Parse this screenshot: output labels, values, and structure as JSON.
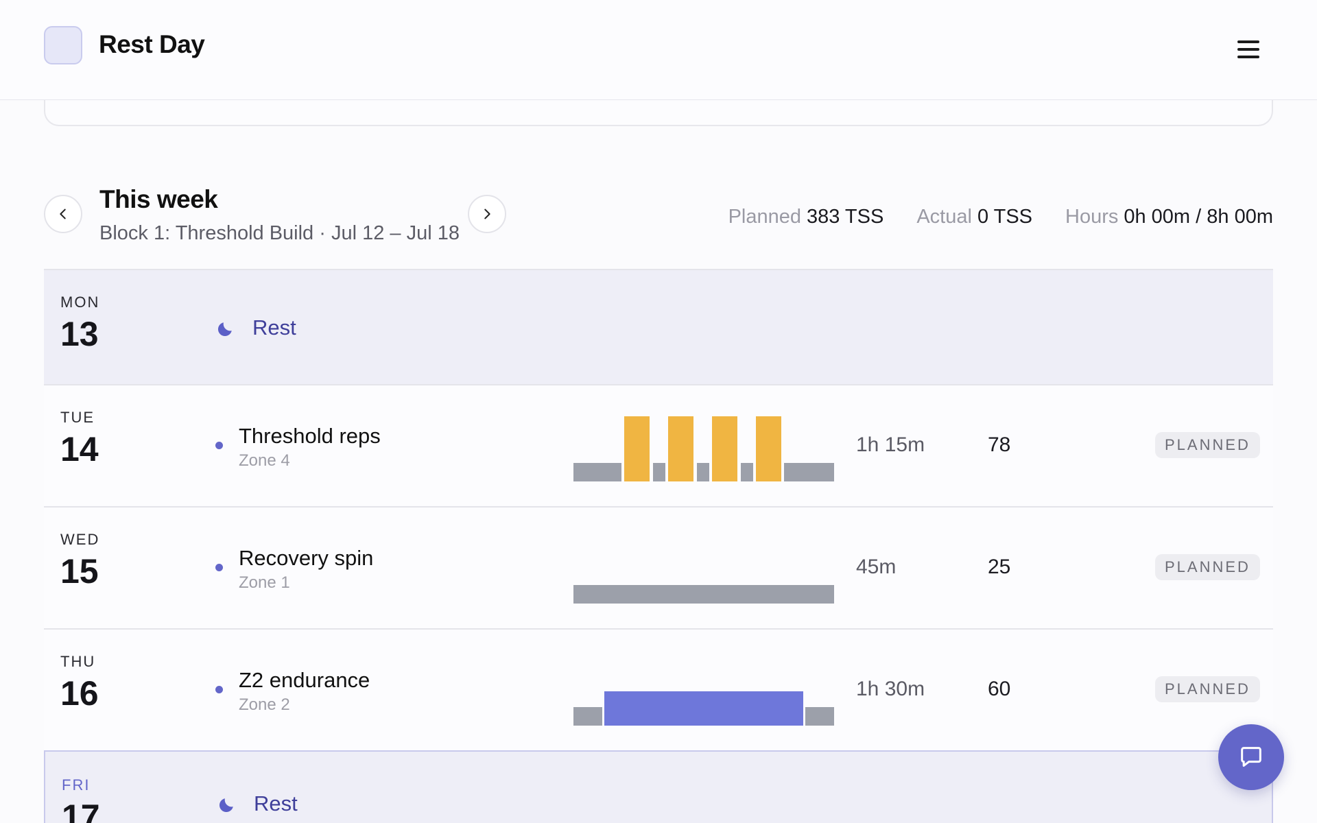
{
  "app": {
    "title": "Rest Day",
    "menu_icon": "hamburger-menu-icon"
  },
  "week": {
    "title": "This week",
    "subtitle": "Block 1: Threshold Build · Jul 12 – Jul 18",
    "stats": [
      {
        "label": "Planned",
        "value": "383 TSS"
      },
      {
        "label": "Actual",
        "value": "0 TSS"
      },
      {
        "label": "Hours",
        "value": "0h 00m / 8h 00m"
      }
    ]
  },
  "days": [
    {
      "dow": "MON",
      "num": "13",
      "type": "rest",
      "label": "Rest"
    },
    {
      "dow": "TUE",
      "num": "14",
      "type": "workout",
      "name": "Threshold reps",
      "zone": "Zone 4",
      "duration": "1h 15m",
      "tss": "78",
      "status": "PLANNED",
      "profile": "threshold"
    },
    {
      "dow": "WED",
      "num": "15",
      "type": "workout",
      "name": "Recovery spin",
      "zone": "Zone 1",
      "duration": "45m",
      "tss": "25",
      "status": "PLANNED",
      "profile": "recovery"
    },
    {
      "dow": "THU",
      "num": "16",
      "type": "workout",
      "name": "Z2 endurance",
      "zone": "Zone 2",
      "duration": "1h 30m",
      "tss": "60",
      "status": "PLANNED",
      "profile": "endurance"
    },
    {
      "dow": "FRI",
      "num": "17",
      "type": "rest",
      "label": "Rest"
    }
  ],
  "colors": {
    "accent": "#6366c9",
    "interval": "#f0b542",
    "recovery": "#9ca0aa",
    "endurance": "#6e77da"
  }
}
